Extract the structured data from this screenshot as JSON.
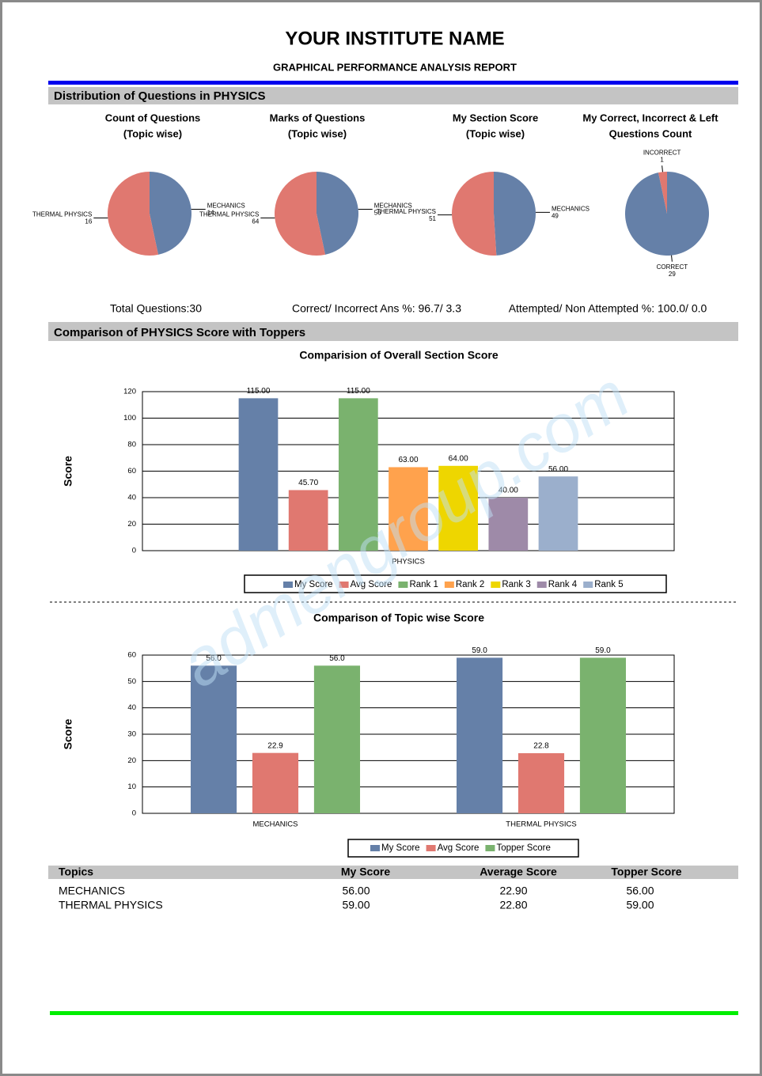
{
  "header": {
    "title": "YOUR INSTITUTE NAME",
    "subtitle": "GRAPHICAL PERFORMANCE ANALYSIS REPORT"
  },
  "sections": [
    {
      "title": "Distribution of Questions in PHYSICS"
    },
    {
      "title": "Comparison of PHYSICS Score with Toppers"
    }
  ],
  "stats": [
    "Total Questions:30",
    "Correct/ Incorrect Ans %: 96.7/ 3.3",
    "Attempted/ Non Attempted %: 100.0/ 0.0"
  ],
  "chart_data": [
    {
      "type": "pie",
      "title": [
        "Count of Questions",
        "(Topic wise)"
      ],
      "categories": [
        "MECHANICS",
        "THERMAL PHYSICS"
      ],
      "values": [
        14,
        16
      ],
      "colors": [
        "#6580a8",
        "#e07870"
      ]
    },
    {
      "type": "pie",
      "title": [
        "Marks of Questions",
        "(Topic wise)"
      ],
      "categories": [
        "MECHANICS",
        "THERMAL PHYSICS"
      ],
      "values": [
        56,
        64
      ],
      "colors": [
        "#6580a8",
        "#e07870"
      ]
    },
    {
      "type": "pie",
      "title": [
        "My Section Score",
        "(Topic wise)"
      ],
      "categories": [
        "MECHANICS",
        "THERMAL PHYSICS"
      ],
      "values": [
        49,
        51
      ],
      "colors": [
        "#6580a8",
        "#e07870"
      ]
    },
    {
      "type": "pie",
      "title": [
        "My Correct, Incorrect & Left",
        "Questions Count"
      ],
      "categories": [
        "CORRECT",
        "INCORRECT"
      ],
      "values": [
        29,
        1
      ],
      "colors": [
        "#6580a8",
        "#e07870"
      ]
    },
    {
      "type": "bar",
      "title": "Comparision of Overall Section Score",
      "y_label": "Score",
      "categories": [
        "PHYSICS"
      ],
      "series": [
        {
          "name": "My Score",
          "color": "#6580a8",
          "values": [
            115
          ],
          "value_labels": [
            "115.00"
          ]
        },
        {
          "name": "Avg Score",
          "color": "#e07870",
          "values": [
            45.7
          ],
          "value_labels": [
            "45.70"
          ]
        },
        {
          "name": "Rank 1",
          "color": "#7ab26e",
          "values": [
            115
          ],
          "value_labels": [
            "115.00"
          ]
        },
        {
          "name": "Rank 2",
          "color": "#ffa24d",
          "values": [
            63
          ],
          "value_labels": [
            "63.00"
          ]
        },
        {
          "name": "Rank 3",
          "color": "#eed600",
          "values": [
            64
          ],
          "value_labels": [
            "64.00"
          ]
        },
        {
          "name": "Rank 4",
          "color": "#9e8aa8",
          "values": [
            40
          ],
          "value_labels": [
            "40.00"
          ]
        },
        {
          "name": "Rank 5",
          "color": "#9bafcc",
          "values": [
            56
          ],
          "value_labels": [
            "56.00"
          ]
        }
      ],
      "ylim": [
        0,
        120
      ],
      "yticks": [
        0,
        20,
        40,
        60,
        80,
        100,
        120
      ],
      "grid": true,
      "legend": "bottom"
    },
    {
      "type": "bar",
      "title": "Comparison of Topic wise Score",
      "y_label": "Score",
      "categories": [
        "MECHANICS",
        "THERMAL PHYSICS"
      ],
      "series": [
        {
          "name": "My Score",
          "color": "#6580a8",
          "values": [
            56,
            59
          ],
          "value_labels": [
            "56.0",
            "59.0"
          ]
        },
        {
          "name": "Avg Score",
          "color": "#e07870",
          "values": [
            22.9,
            22.8
          ],
          "value_labels": [
            "22.9",
            "22.8"
          ]
        },
        {
          "name": "Topper Score",
          "color": "#7ab26e",
          "values": [
            56,
            59
          ],
          "value_labels": [
            "56.0",
            "59.0"
          ]
        }
      ],
      "ylim": [
        0,
        60
      ],
      "yticks": [
        0,
        10,
        20,
        30,
        40,
        50,
        60
      ],
      "grid": true,
      "legend": "bottom"
    }
  ],
  "table": {
    "columns": [
      "Topics",
      "My Score",
      "Average Score",
      "Topper Score"
    ],
    "rows": [
      [
        "MECHANICS",
        "56.00",
        "22.90",
        "56.00"
      ],
      [
        "THERMAL PHYSICS",
        "59.00",
        "22.80",
        "59.00"
      ]
    ]
  },
  "watermark": "admengroup.com"
}
